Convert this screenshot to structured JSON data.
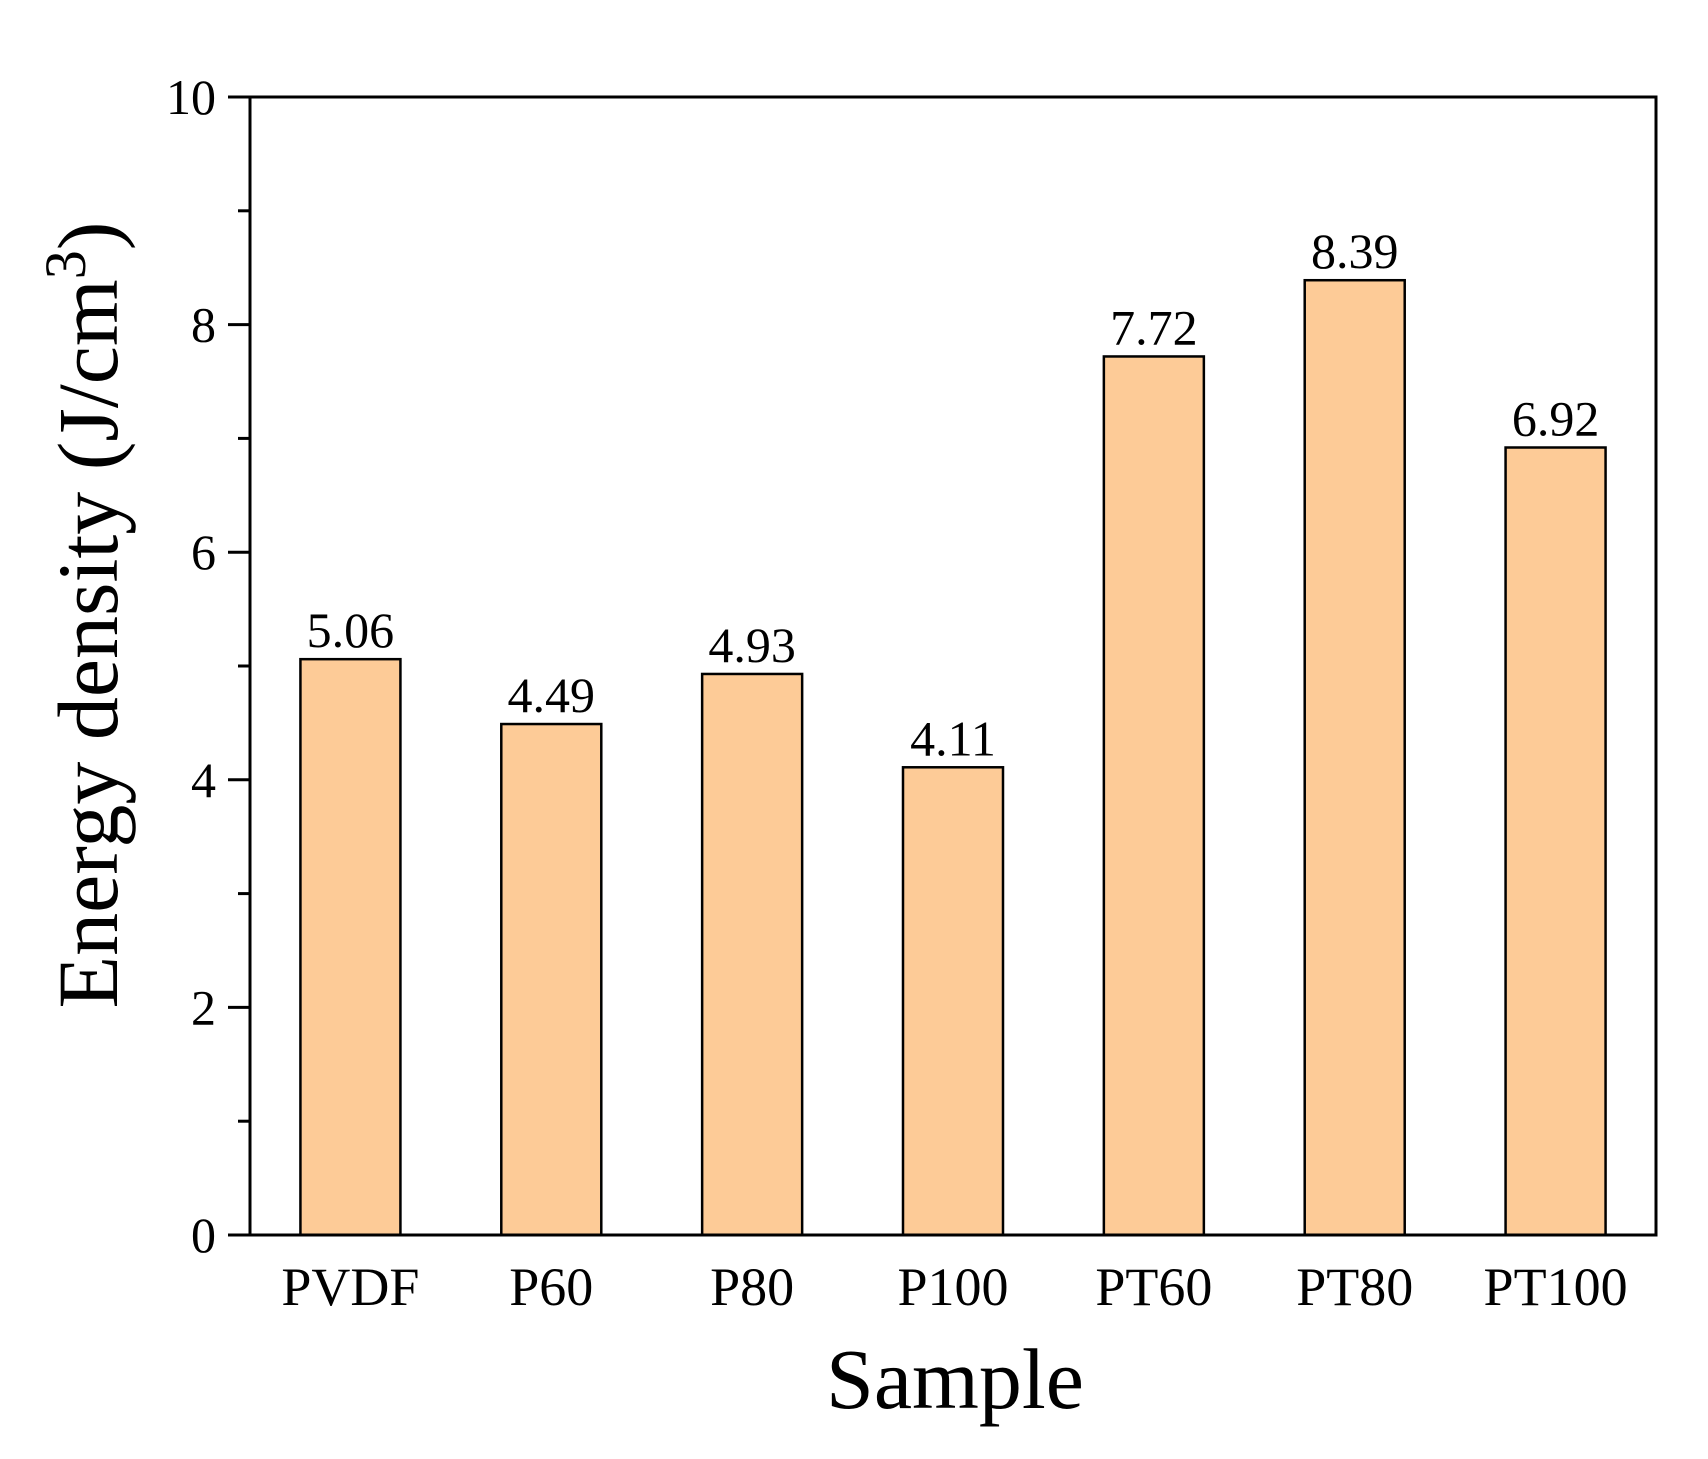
{
  "chart_data": {
    "type": "bar",
    "categories": [
      "PVDF",
      "P60",
      "P80",
      "P100",
      "PT60",
      "PT80",
      "PT100"
    ],
    "values": [
      5.06,
      4.49,
      4.93,
      4.11,
      7.72,
      8.39,
      6.92
    ],
    "value_labels": [
      "5.06",
      "4.49",
      "4.93",
      "4.11",
      "7.72",
      "8.39",
      "6.92"
    ],
    "xlabel": "Sample",
    "ylabel_main": "Energy density (J/cm",
    "ylabel_sup": "3",
    "ylabel_close": ")",
    "ylim": [
      0,
      10
    ],
    "yticks": [
      0,
      2,
      4,
      6,
      8,
      10
    ],
    "minor_tick_step": 1,
    "grid": false,
    "bar_color": "#FDCB97",
    "bar_edge_color": "#000000"
  }
}
